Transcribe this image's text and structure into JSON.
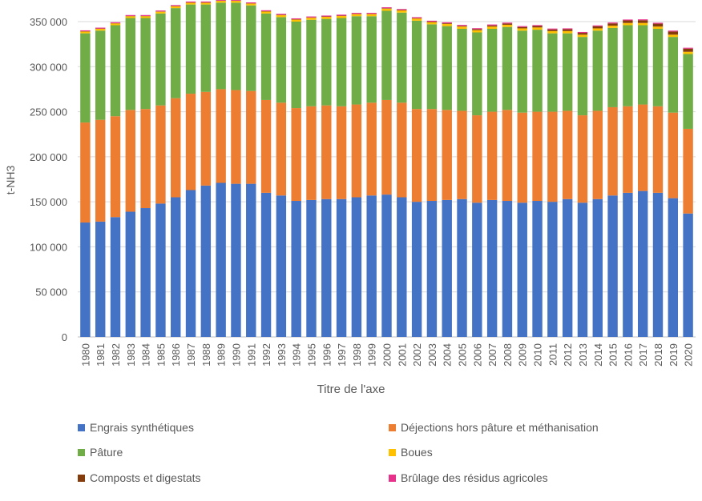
{
  "chart_data": {
    "type": "bar",
    "stacked": true,
    "title": "",
    "xlabel": "Titre de l'axe",
    "ylabel": "t-NH3",
    "ylim": [
      0,
      370000
    ],
    "yticks": [
      0,
      50000,
      100000,
      150000,
      200000,
      250000,
      300000,
      350000
    ],
    "ytick_labels": [
      "0",
      "50 000",
      "100 000",
      "150 000",
      "200 000",
      "250 000",
      "300 000",
      "350 000"
    ],
    "grid": true,
    "legend_position": "bottom",
    "categories": [
      "1980",
      "1981",
      "1982",
      "1983",
      "1984",
      "1985",
      "1986",
      "1987",
      "1988",
      "1989",
      "1990",
      "1991",
      "1992",
      "1993",
      "1994",
      "1995",
      "1996",
      "1997",
      "1998",
      "1999",
      "2000",
      "2001",
      "2002",
      "2003",
      "2004",
      "2005",
      "2006",
      "2007",
      "2008",
      "2009",
      "2010",
      "2011",
      "2012",
      "2013",
      "2014",
      "2015",
      "2016",
      "2017",
      "2018",
      "2019",
      "2020"
    ],
    "series": [
      {
        "name": "Engrais synthétiques",
        "color": "#4472C4",
        "values": [
          127000,
          128000,
          133000,
          139000,
          143000,
          148000,
          155000,
          163000,
          168000,
          171000,
          170000,
          170000,
          160000,
          157000,
          151000,
          152000,
          153000,
          153000,
          155000,
          157000,
          158000,
          155000,
          150000,
          151000,
          152000,
          153000,
          149000,
          152000,
          151000,
          149000,
          151000,
          150000,
          153000,
          149000,
          153000,
          157000,
          160000,
          162000,
          160000,
          154000,
          137000
        ]
      },
      {
        "name": "Déjections hors pâture et méthanisation",
        "color": "#ED7D31",
        "values": [
          111000,
          113000,
          112000,
          113000,
          110000,
          109000,
          110000,
          107000,
          104000,
          104000,
          104000,
          103000,
          103000,
          103000,
          103000,
          104000,
          104000,
          103000,
          103000,
          103000,
          105000,
          105000,
          103000,
          102000,
          100000,
          98000,
          97000,
          98000,
          101000,
          100000,
          99000,
          100000,
          98000,
          97000,
          98000,
          98000,
          96000,
          96000,
          96000,
          95000,
          94000
        ]
      },
      {
        "name": "Pâture",
        "color": "#70AD47",
        "values": [
          99000,
          99000,
          101000,
          102000,
          101000,
          102000,
          100000,
          99000,
          97000,
          96000,
          97000,
          95000,
          96000,
          95000,
          96000,
          96000,
          96000,
          98000,
          98000,
          96000,
          99000,
          100000,
          98000,
          94000,
          93000,
          91000,
          92000,
          92000,
          92000,
          91000,
          91000,
          87000,
          86000,
          87000,
          89000,
          88000,
          90000,
          88000,
          86000,
          84000,
          83000
        ]
      },
      {
        "name": "Boues",
        "color": "#FFC000",
        "values": [
          2000,
          2000,
          2000,
          2000,
          2000,
          2000,
          2000,
          2000,
          2000,
          2000,
          2000,
          2000,
          2200,
          2200,
          2200,
          2300,
          2300,
          2300,
          2300,
          2300,
          2400,
          2400,
          2400,
          2400,
          2500,
          2500,
          2500,
          2500,
          2500,
          2500,
          2500,
          2500,
          2500,
          2500,
          2500,
          2500,
          2500,
          2500,
          2500,
          2500,
          2500
        ]
      },
      {
        "name": "Composts et digestats",
        "color": "#843C0C",
        "values": [
          300,
          300,
          300,
          300,
          300,
          300,
          300,
          300,
          300,
          300,
          300,
          300,
          400,
          400,
          400,
          400,
          400,
          400,
          400,
          400,
          500,
          500,
          500,
          600,
          700,
          800,
          1200,
          1300,
          1400,
          1500,
          1600,
          1800,
          2000,
          2000,
          2300,
          2500,
          2800,
          3000,
          3200,
          3500,
          3500
        ]
      },
      {
        "name": "Brûlage des résidus agricoles",
        "color": "#E8318A",
        "values": [
          1000,
          1000,
          1000,
          1000,
          1000,
          1000,
          1000,
          1000,
          1000,
          1000,
          1000,
          1000,
          1000,
          1000,
          1000,
          1000,
          1000,
          1000,
          1000,
          1000,
          1000,
          1000,
          1000,
          1000,
          1000,
          1000,
          1000,
          1000,
          1000,
          1000,
          1000,
          1000,
          1000,
          1000,
          1000,
          1000,
          1000,
          1000,
          1000,
          1000,
          1000
        ]
      }
    ]
  }
}
